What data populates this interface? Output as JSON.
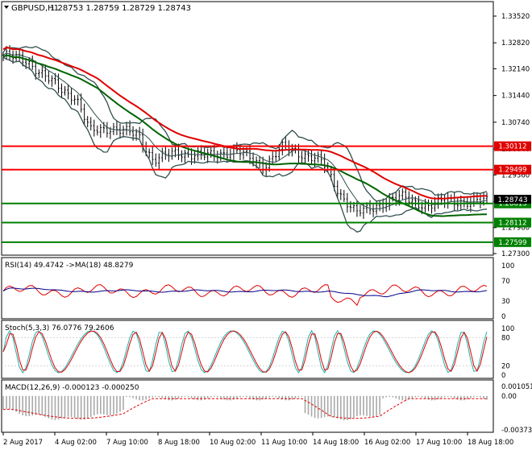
{
  "main": {
    "symbol_label": "GBPUSD,H1",
    "ohlc_label": "1.28753 1.28759 1.28729 1.28743",
    "price_ticks": [
      "1.33520",
      "1.32820",
      "1.32140",
      "1.31440",
      "1.30740",
      "1.30040",
      "1.29360",
      "1.28660",
      "1.27980",
      "1.27300"
    ],
    "levels": [
      {
        "label": "1.30112",
        "value": 1.30112,
        "line_color": "#ff0000",
        "tag_color": "#e00000"
      },
      {
        "label": "1.29499",
        "value": 1.29499,
        "line_color": "#ff0000",
        "tag_color": "#e00000"
      },
      {
        "label": "1.28613",
        "value": 1.28613,
        "line_color": "#008000",
        "tag_color": "#008000"
      },
      {
        "label": "1.28112",
        "value": 1.28112,
        "line_color": "#008000",
        "tag_color": "#008000"
      },
      {
        "label": "1.27599",
        "value": 1.27599,
        "line_color": "#008000",
        "tag_color": "#008000"
      }
    ],
    "current_price_label": "1.28743"
  },
  "rsi": {
    "label": "RSI(14) 49.4742 ->MA(18) 48.8279",
    "ticks": [
      "100",
      "70",
      "30",
      "0"
    ]
  },
  "stoch": {
    "label": "Stoch(5,3,3) 76.0776 79.2606",
    "ticks": [
      "100",
      "80",
      "20",
      "0"
    ]
  },
  "macd": {
    "label": "MACD(12,26,9) -0.000123 -0.000250",
    "ticks": [
      "0.001051",
      "0.00",
      "-0.003739"
    ]
  },
  "time_labels": [
    "2 Aug 2017",
    "4 Aug 02:00",
    "7 Aug 10:00",
    "8 Aug 18:00",
    "10 Aug 02:00",
    "11 Aug 10:00",
    "14 Aug 18:00",
    "16 Aug 02:00",
    "17 Aug 10:00",
    "18 Aug 18:00"
  ],
  "colors": {
    "ma_slow": "#006400",
    "ma_fast": "#e00000",
    "bands": "#2f4f4f",
    "candles": "#000000",
    "rsi": "#e00000",
    "rsi_ma": "#00008b",
    "stoch_main": "#20b2aa",
    "stoch_signal": "#e00000",
    "macd_hist": "#a9a9a9",
    "macd_signal": "#e00000"
  }
}
